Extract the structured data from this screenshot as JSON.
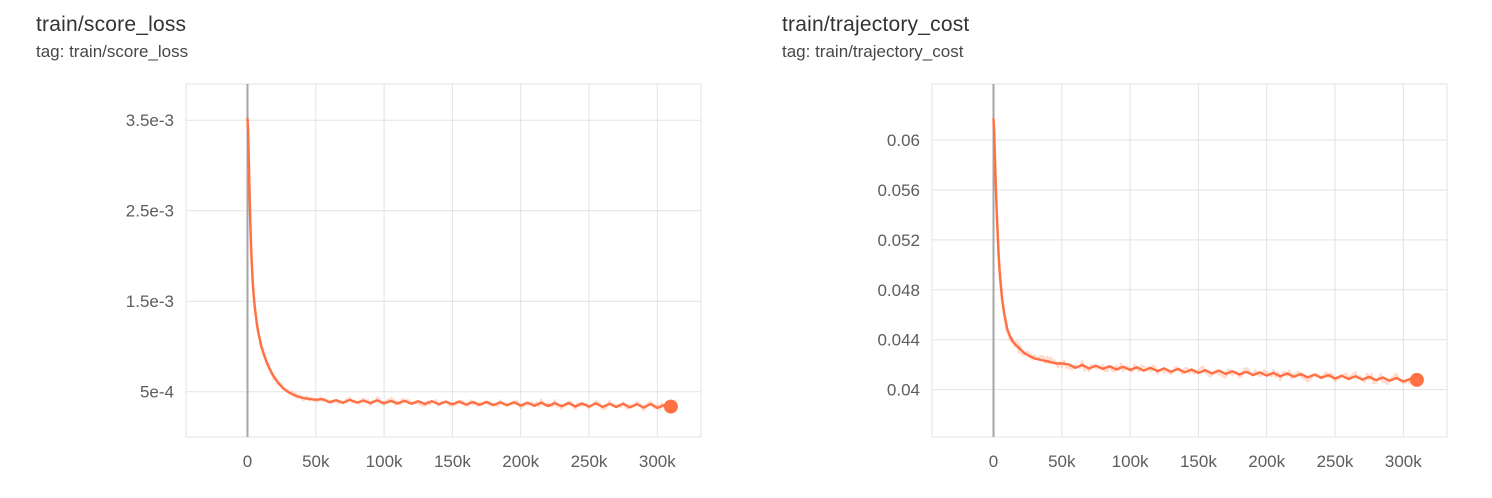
{
  "window": {
    "background": "#ffffff"
  },
  "colors": {
    "line": "#ff7043",
    "raw_line": "#ff7043",
    "grid": "#e3e3e3",
    "zero_line": "#a6a6a6",
    "tick_text": "#5d5d5d",
    "title_text": "#333333"
  },
  "chart_data": [
    {
      "type": "line",
      "title": "train/score_loss",
      "tag": "tag: train/score_loss",
      "xlabel": "",
      "ylabel": "",
      "xlim": [
        -45000,
        332000
      ],
      "ylim": [
        0,
        0.0039
      ],
      "grid": true,
      "legend": "none",
      "zero_line_x": 0,
      "seed": 7,
      "raw_noise": 3e-05,
      "xticks": {
        "values": [
          0,
          50000,
          100000,
          150000,
          200000,
          250000,
          300000
        ],
        "labels": [
          "0",
          "50k",
          "100k",
          "150k",
          "200k",
          "250k",
          "300k"
        ]
      },
      "yticks": {
        "values": [
          0.0005,
          0.0015,
          0.0025,
          0.0035
        ],
        "labels": [
          "5e-4",
          "1.5e-3",
          "2.5e-3",
          "3.5e-3"
        ]
      },
      "series": [
        {
          "name": "train",
          "color": "#ff7043",
          "points": [
            [
              0,
              0.00352
            ],
            [
              500,
              0.00335
            ],
            [
              1000,
              0.00305
            ],
            [
              1500,
              0.00272
            ],
            [
              2000,
              0.00241
            ],
            [
              2500,
              0.00216
            ],
            [
              3000,
              0.00196
            ],
            [
              3500,
              0.00181
            ],
            [
              4000,
              0.00168
            ],
            [
              4500,
              0.00158
            ],
            [
              5000,
              0.00149
            ],
            [
              6000,
              0.00135
            ],
            [
              7000,
              0.00124
            ],
            [
              8000,
              0.00115
            ],
            [
              9000,
              0.00108
            ],
            [
              10000,
              0.00101
            ],
            [
              12000,
              0.00091
            ],
            [
              14000,
              0.00083
            ],
            [
              16000,
              0.00076
            ],
            [
              18000,
              0.0007
            ],
            [
              20000,
              0.00065
            ],
            [
              23000,
              0.00059
            ],
            [
              26000,
              0.00054
            ],
            [
              29000,
              0.000505
            ],
            [
              32000,
              0.000478
            ],
            [
              35000,
              0.000458
            ],
            [
              38000,
              0.000442
            ],
            [
              41000,
              0.000431
            ],
            [
              44000,
              0.000423
            ],
            [
              47000,
              0.000417
            ],
            [
              50000,
              0.000412
            ],
            [
              55000,
              0.000418
            ],
            [
              60000,
              0.000384
            ],
            [
              65000,
              0.000407
            ],
            [
              70000,
              0.000378
            ],
            [
              75000,
              0.000411
            ],
            [
              80000,
              0.00038
            ],
            [
              85000,
              0.000402
            ],
            [
              90000,
              0.000375
            ],
            [
              95000,
              0.000405
            ],
            [
              100000,
              0.000372
            ],
            [
              105000,
              0.000398
            ],
            [
              110000,
              0.00037
            ],
            [
              115000,
              0.0004
            ],
            [
              120000,
              0.000367
            ],
            [
              125000,
              0.000395
            ],
            [
              130000,
              0.000365
            ],
            [
              135000,
              0.000396
            ],
            [
              140000,
              0.000362
            ],
            [
              145000,
              0.000391
            ],
            [
              150000,
              0.00036
            ],
            [
              155000,
              0.000392
            ],
            [
              160000,
              0.000357
            ],
            [
              165000,
              0.000387
            ],
            [
              170000,
              0.000355
            ],
            [
              175000,
              0.000388
            ],
            [
              180000,
              0.000352
            ],
            [
              185000,
              0.000383
            ],
            [
              190000,
              0.00035
            ],
            [
              195000,
              0.000384
            ],
            [
              200000,
              0.000347
            ],
            [
              205000,
              0.000379
            ],
            [
              210000,
              0.000345
            ],
            [
              215000,
              0.00038
            ],
            [
              220000,
              0.000342
            ],
            [
              225000,
              0.000375
            ],
            [
              230000,
              0.00034
            ],
            [
              235000,
              0.000376
            ],
            [
              240000,
              0.000337
            ],
            [
              245000,
              0.000371
            ],
            [
              250000,
              0.000335
            ],
            [
              255000,
              0.000372
            ],
            [
              260000,
              0.000332
            ],
            [
              265000,
              0.000367
            ],
            [
              270000,
              0.00033
            ],
            [
              275000,
              0.000368
            ],
            [
              280000,
              0.000327
            ],
            [
              285000,
              0.000363
            ],
            [
              290000,
              0.000325
            ],
            [
              295000,
              0.000364
            ],
            [
              300000,
              0.000322
            ],
            [
              305000,
              0.000352
            ],
            [
              310000,
              0.000336
            ]
          ]
        }
      ]
    },
    {
      "type": "line",
      "title": "train/trajectory_cost",
      "tag": "tag: train/trajectory_cost",
      "xlabel": "",
      "ylabel": "",
      "xlim": [
        -45000,
        332000
      ],
      "ylim": [
        0.0362,
        0.0645
      ],
      "grid": true,
      "legend": "none",
      "zero_line_x": 0,
      "seed": 13,
      "raw_noise": 0.00035,
      "xticks": {
        "values": [
          0,
          50000,
          100000,
          150000,
          200000,
          250000,
          300000
        ],
        "labels": [
          "0",
          "50k",
          "100k",
          "150k",
          "200k",
          "250k",
          "300k"
        ]
      },
      "yticks": {
        "values": [
          0.04,
          0.044,
          0.048,
          0.052,
          0.056,
          0.06
        ],
        "labels": [
          "0.04",
          "0.044",
          "0.048",
          "0.052",
          "0.056",
          "0.06"
        ]
      },
      "series": [
        {
          "name": "train",
          "color": "#ff7043",
          "points": [
            [
              0,
              0.0617
            ],
            [
              500,
              0.0606
            ],
            [
              1000,
              0.0589
            ],
            [
              1500,
              0.0571
            ],
            [
              2000,
              0.0554
            ],
            [
              2500,
              0.0539
            ],
            [
              3000,
              0.0526
            ],
            [
              3500,
              0.0514
            ],
            [
              4000,
              0.0504
            ],
            [
              4500,
              0.0495
            ],
            [
              5000,
              0.0488
            ],
            [
              6000,
              0.0476
            ],
            [
              7000,
              0.0467
            ],
            [
              8000,
              0.046
            ],
            [
              9000,
              0.0454
            ],
            [
              10000,
              0.0449
            ],
            [
              12000,
              0.0443
            ],
            [
              14000,
              0.0439
            ],
            [
              16000,
              0.0436
            ],
            [
              18000,
              0.0434
            ],
            [
              20000,
              0.0432
            ],
            [
              23000,
              0.0429
            ],
            [
              26000,
              0.0427
            ],
            [
              30000,
              0.0425
            ],
            [
              34000,
              0.0424
            ],
            [
              38000,
              0.0423
            ],
            [
              42000,
              0.0422
            ],
            [
              46000,
              0.0421
            ],
            [
              50000,
              0.0421
            ],
            [
              55000,
              0.04202
            ],
            [
              60000,
              0.04175
            ],
            [
              65000,
              0.04197
            ],
            [
              70000,
              0.0417
            ],
            [
              75000,
              0.04192
            ],
            [
              80000,
              0.04166
            ],
            [
              85000,
              0.04188
            ],
            [
              90000,
              0.04161
            ],
            [
              95000,
              0.04183
            ],
            [
              100000,
              0.04157
            ],
            [
              105000,
              0.04179
            ],
            [
              110000,
              0.04152
            ],
            [
              115000,
              0.04174
            ],
            [
              120000,
              0.04148
            ],
            [
              125000,
              0.0417
            ],
            [
              130000,
              0.04143
            ],
            [
              135000,
              0.04165
            ],
            [
              140000,
              0.04139
            ],
            [
              145000,
              0.04161
            ],
            [
              150000,
              0.04134
            ],
            [
              155000,
              0.04156
            ],
            [
              160000,
              0.0413
            ],
            [
              165000,
              0.04152
            ],
            [
              170000,
              0.04125
            ],
            [
              175000,
              0.04147
            ],
            [
              180000,
              0.04121
            ],
            [
              185000,
              0.04143
            ],
            [
              190000,
              0.04116
            ],
            [
              195000,
              0.04138
            ],
            [
              200000,
              0.04112
            ],
            [
              205000,
              0.04134
            ],
            [
              210000,
              0.04107
            ],
            [
              215000,
              0.04129
            ],
            [
              220000,
              0.04103
            ],
            [
              225000,
              0.04125
            ],
            [
              230000,
              0.04098
            ],
            [
              235000,
              0.0412
            ],
            [
              240000,
              0.04094
            ],
            [
              245000,
              0.04116
            ],
            [
              250000,
              0.04089
            ],
            [
              255000,
              0.04111
            ],
            [
              260000,
              0.04085
            ],
            [
              265000,
              0.04107
            ],
            [
              270000,
              0.0408
            ],
            [
              275000,
              0.04102
            ],
            [
              280000,
              0.04076
            ],
            [
              285000,
              0.04097
            ],
            [
              290000,
              0.04071
            ],
            [
              295000,
              0.04093
            ],
            [
              300000,
              0.04066
            ],
            [
              305000,
              0.04085
            ],
            [
              310000,
              0.04078
            ]
          ]
        }
      ]
    }
  ]
}
